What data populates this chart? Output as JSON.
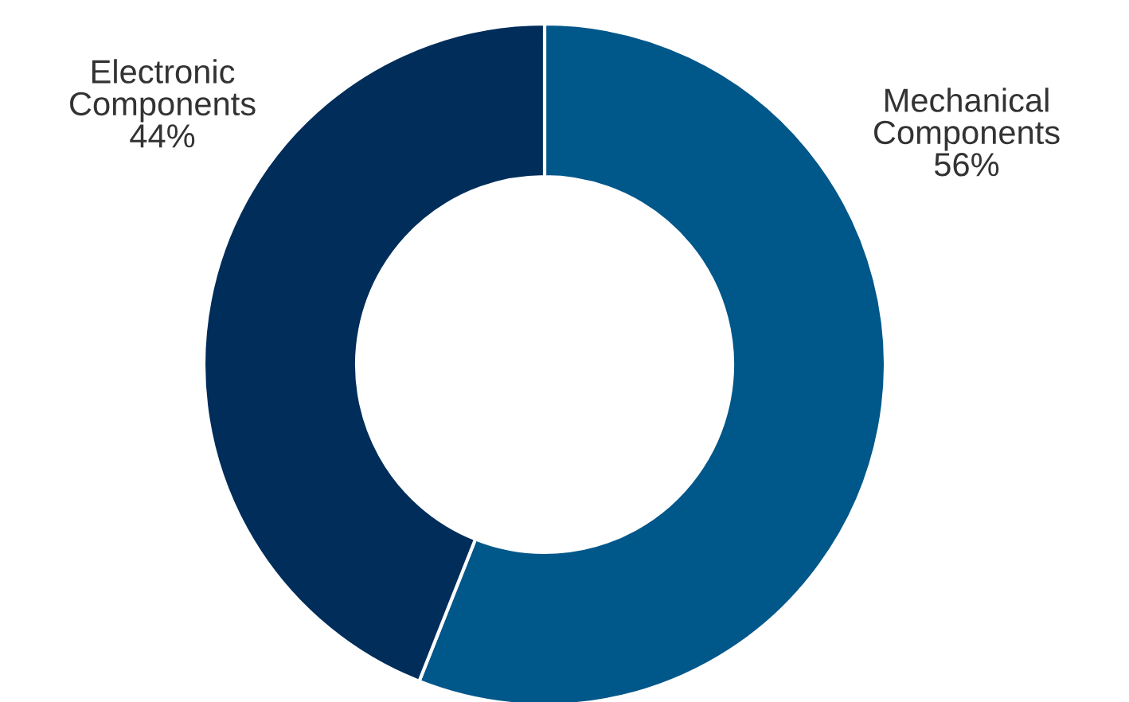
{
  "chart_data": {
    "type": "donut",
    "categories": [
      "Mechanical\nComponents",
      "Electronic\nComponents"
    ],
    "values": [
      56,
      44
    ],
    "colors": [
      "#00578a",
      "#002d5a"
    ],
    "value_labels": [
      "56%",
      "44%"
    ],
    "legend": false
  }
}
